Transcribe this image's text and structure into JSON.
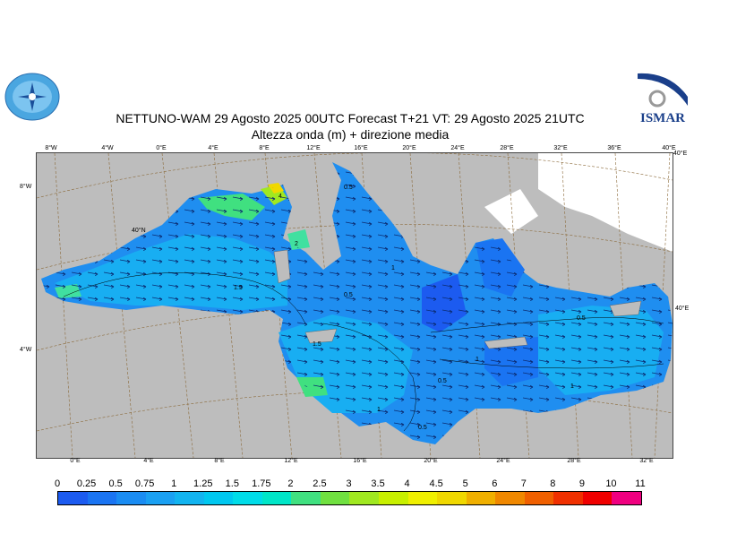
{
  "header": {
    "title_line1": "NETTUNO-WAM  29   Agosto  2025 00UTC Forecast T+21 VT: 29   Agosto  2025 21UTC",
    "title_line2": "Altezza onda (m) + direzione media",
    "right_logo_text": "ISMAR"
  },
  "map": {
    "top_lon_labels": [
      "8°W",
      "4°W",
      "0°E",
      "4°E",
      "8°E",
      "12°E",
      "16°E",
      "20°E",
      "24°E",
      "28°E",
      "32°E",
      "36°E",
      "40°E"
    ],
    "bottom_lon_labels": [
      "0°E",
      "4°E",
      "8°E",
      "12°E",
      "16°E",
      "20°E",
      "24°E",
      "28°E",
      "32°E"
    ],
    "left_lat_labels": [
      "8°W",
      "4°W"
    ],
    "lat_40_label": "40°N",
    "right_labels": [
      "40°E",
      "40°E"
    ],
    "contour_labels": [
      "0.5",
      "1",
      "1.5",
      "2",
      "0.5",
      "1",
      "1.5",
      "0.5",
      "1",
      "0.5",
      "1",
      "4",
      "0.5"
    ],
    "land_color": "#bdbdbd",
    "sea_color": "#1f8ef0"
  },
  "legend": {
    "labels": [
      "0",
      "0.25",
      "0.5",
      "0.75",
      "1",
      "1.25",
      "1.5",
      "1.75",
      "2",
      "2.5",
      "3",
      "3.5",
      "4",
      "4.5",
      "5",
      "6",
      "7",
      "8",
      "9",
      "10",
      "11"
    ],
    "colors": [
      "#1c5bf0",
      "#1a74f2",
      "#1a8cf2",
      "#1aa0f2",
      "#12b4f0",
      "#00c8f0",
      "#00dce8",
      "#00e6c8",
      "#40e080",
      "#70e040",
      "#a0e820",
      "#c8f000",
      "#f0f000",
      "#f0d800",
      "#f0b000",
      "#f08800",
      "#f06000",
      "#f03000",
      "#f00000",
      "#f00080",
      "#f040c0"
    ]
  }
}
